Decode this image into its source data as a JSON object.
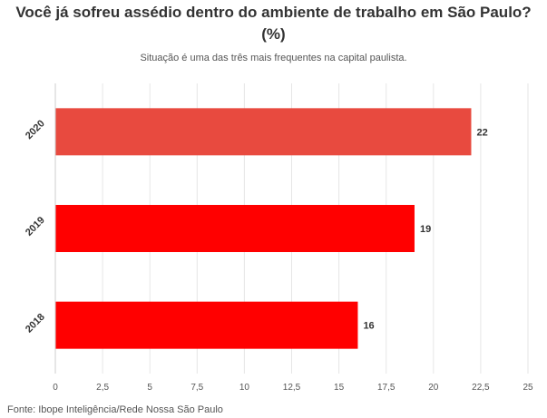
{
  "chart_data": {
    "type": "bar",
    "orientation": "horizontal",
    "title": "Você já sofreu assédio dentro do ambiente de trabalho em São Paulo? (%)",
    "title_lines": [
      "Você já sofreu assédio dentro do ambiente de trabalho em São Paulo?",
      "(%)"
    ],
    "subtitle": "Situação é uma das três mais frequentes na capital paulista.",
    "categories": [
      "2020",
      "2019",
      "2018"
    ],
    "values": [
      22,
      19,
      16
    ],
    "value_labels": [
      "22",
      "19",
      "16"
    ],
    "bar_colors": [
      "#e84a3f",
      "#ff0000",
      "#ff0000"
    ],
    "xlim": [
      0,
      25
    ],
    "x_ticks": [
      0,
      2.5,
      5,
      7.5,
      10,
      12.5,
      15,
      17.5,
      20,
      22.5,
      25
    ],
    "x_tick_labels": [
      "0",
      "2,5",
      "5",
      "7,5",
      "10",
      "12,5",
      "15",
      "17,5",
      "20",
      "22,5",
      "25"
    ],
    "xlabel": "",
    "ylabel": "",
    "grid": true,
    "source": "Fonte: Ibope Inteligência/Rede Nossa São Paulo"
  }
}
